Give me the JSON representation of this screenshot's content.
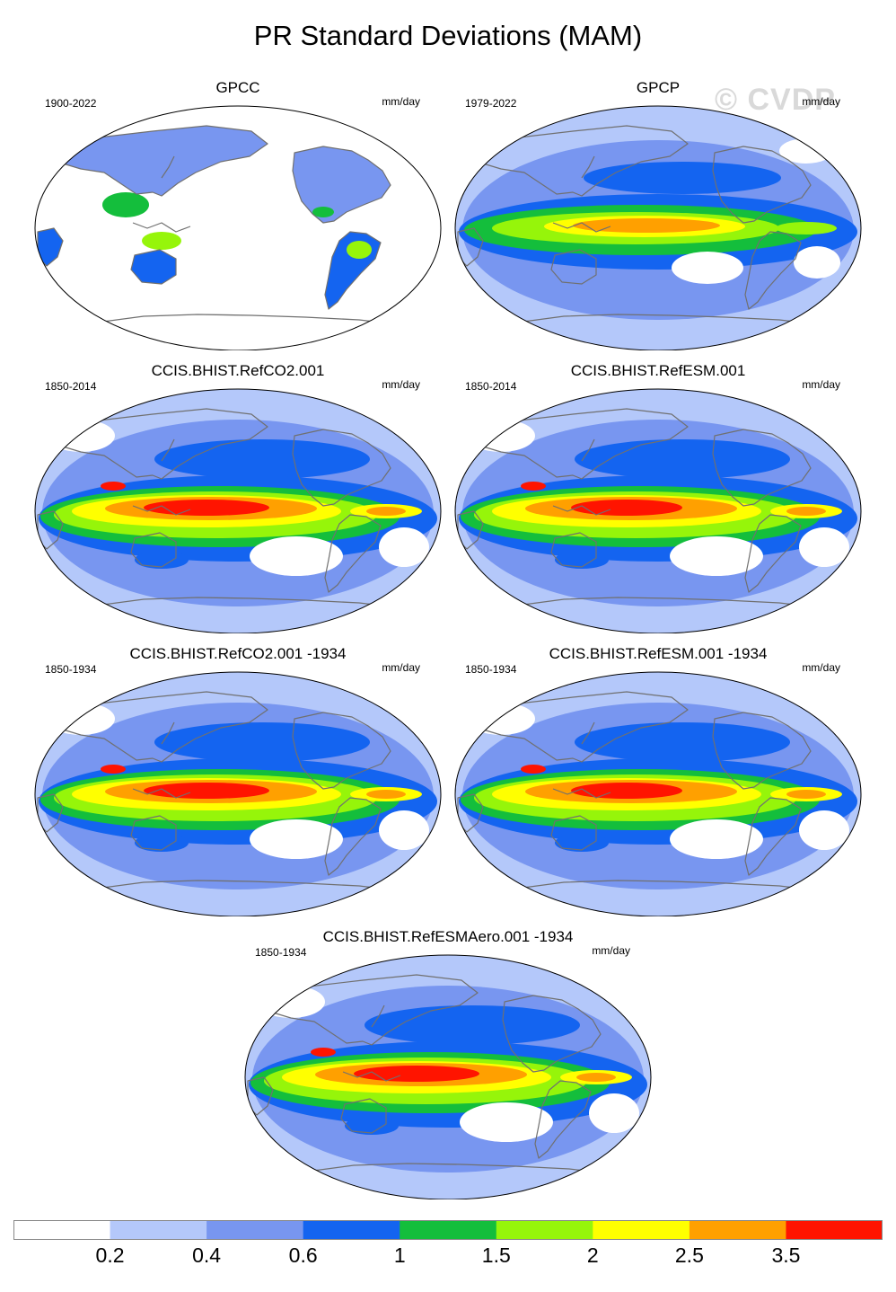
{
  "title": "PR Standard Deviations (MAM)",
  "watermark": "© CVDP",
  "panels": [
    {
      "title": "GPCC",
      "period": "1900-2022",
      "units": "mm/day",
      "kind": "obs-land"
    },
    {
      "title": "GPCP",
      "period": "1979-2022",
      "units": "mm/day",
      "kind": "obs-global"
    },
    {
      "title": "CCIS.BHIST.RefCO2.001",
      "period": "1850-2014",
      "units": "mm/day",
      "kind": "model"
    },
    {
      "title": "CCIS.BHIST.RefESM.001",
      "period": "1850-2014",
      "units": "mm/day",
      "kind": "model"
    },
    {
      "title": "CCIS.BHIST.RefCO2.001 -1934",
      "period": "1850-1934",
      "units": "mm/day",
      "kind": "model"
    },
    {
      "title": "CCIS.BHIST.RefESM.001 -1934",
      "period": "1850-1934",
      "units": "mm/day",
      "kind": "model"
    },
    {
      "title": "CCIS.BHIST.RefESMAero.001 -1934",
      "period": "1850-1934",
      "units": "mm/day",
      "kind": "model"
    }
  ],
  "colorbar": {
    "labels": [
      "0.2",
      "0.4",
      "0.6",
      "1",
      "1.5",
      "2",
      "2.5",
      "3.5"
    ],
    "colors": [
      "#ffffff",
      "#b4c8fa",
      "#7896f0",
      "#1464f0",
      "#14be3c",
      "#96f50a",
      "#ffff00",
      "#ffa000",
      "#ff1400"
    ]
  }
}
